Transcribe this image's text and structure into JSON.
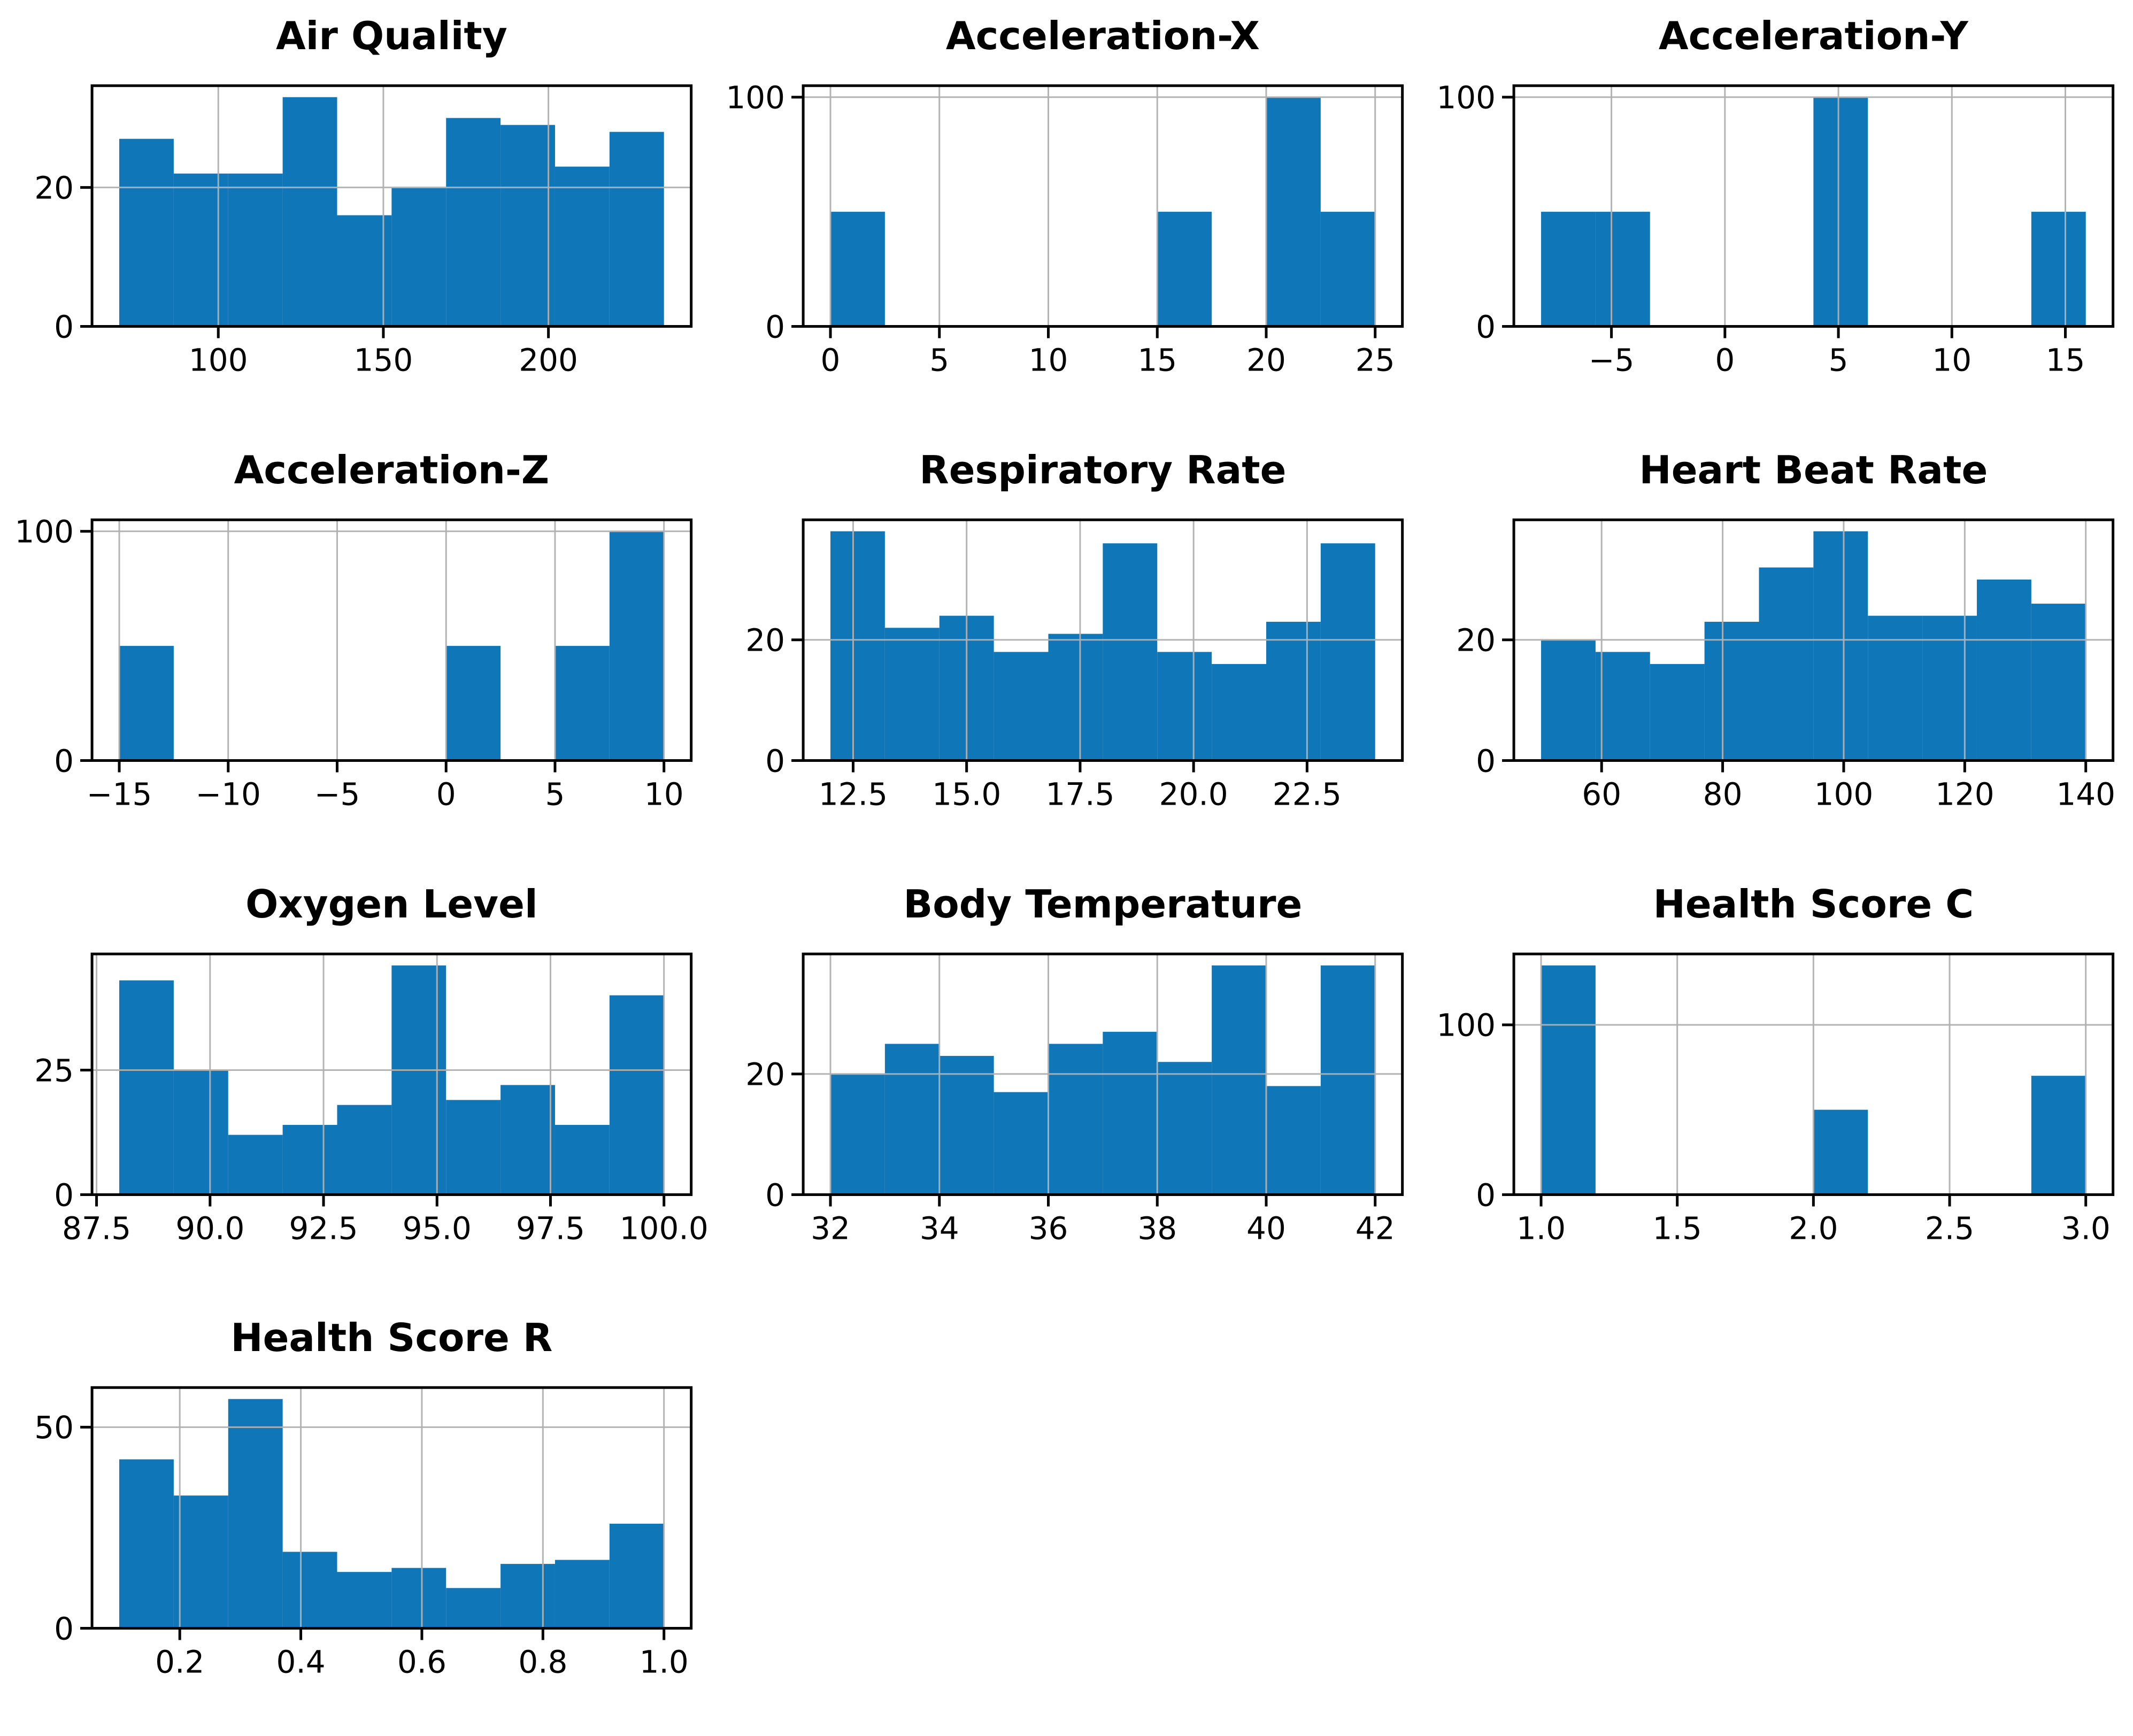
{
  "figure": {
    "background": "#ffffff",
    "grid_rows": 4,
    "grid_cols": 3,
    "empty_cells": 2
  },
  "colors": {
    "bar": "#0f76b8",
    "grid": "#b0b0b0",
    "spine": "#000000",
    "text": "#000000"
  },
  "chart_data": [
    {
      "type": "bar",
      "subtype": "histogram",
      "title": "Air Quality",
      "bin_start": 70,
      "bin_width": 16.5,
      "values": [
        27,
        22,
        22,
        33,
        16,
        20,
        30,
        29,
        23,
        28
      ],
      "xticks": [
        {
          "v": 100,
          "label": "100"
        },
        {
          "v": 150,
          "label": "150"
        },
        {
          "v": 200,
          "label": "200"
        }
      ],
      "yticks": [
        {
          "v": 0,
          "label": "0"
        },
        {
          "v": 20,
          "label": "20"
        }
      ],
      "xlim": [
        61.75,
        243.25
      ],
      "ylim": [
        0,
        34.65
      ],
      "grid": true
    },
    {
      "type": "bar",
      "subtype": "histogram",
      "title": "Acceleration-X",
      "bin_start": 0,
      "bin_width": 2.5,
      "values": [
        50,
        0,
        0,
        0,
        0,
        0,
        50,
        0,
        100,
        50
      ],
      "xticks": [
        {
          "v": 0,
          "label": "0"
        },
        {
          "v": 5,
          "label": "5"
        },
        {
          "v": 10,
          "label": "10"
        },
        {
          "v": 15,
          "label": "15"
        },
        {
          "v": 20,
          "label": "20"
        },
        {
          "v": 25,
          "label": "25"
        }
      ],
      "yticks": [
        {
          "v": 0,
          "label": "0"
        },
        {
          "v": 100,
          "label": "100"
        }
      ],
      "xlim": [
        -1.25,
        26.25
      ],
      "ylim": [
        0,
        105
      ],
      "grid": true
    },
    {
      "type": "bar",
      "subtype": "histogram",
      "title": "Acceleration-Y",
      "bin_start": -8.1,
      "bin_width": 2.4,
      "values": [
        50,
        50,
        0,
        0,
        0,
        100,
        0,
        0,
        0,
        50
      ],
      "xticks": [
        {
          "v": -5,
          "label": "−5"
        },
        {
          "v": 0,
          "label": "0"
        },
        {
          "v": 5,
          "label": "5"
        },
        {
          "v": 10,
          "label": "10"
        },
        {
          "v": 15,
          "label": "15"
        }
      ],
      "yticks": [
        {
          "v": 0,
          "label": "0"
        },
        {
          "v": 100,
          "label": "100"
        }
      ],
      "xlim": [
        -9.3,
        17.1
      ],
      "ylim": [
        0,
        105
      ],
      "grid": true
    },
    {
      "type": "bar",
      "subtype": "histogram",
      "title": "Acceleration-Z",
      "bin_start": -15,
      "bin_width": 2.5,
      "values": [
        50,
        0,
        0,
        0,
        0,
        0,
        50,
        0,
        50,
        100
      ],
      "xticks": [
        {
          "v": -15,
          "label": "−15"
        },
        {
          "v": -10,
          "label": "−10"
        },
        {
          "v": -5,
          "label": "−5"
        },
        {
          "v": 0,
          "label": "0"
        },
        {
          "v": 5,
          "label": "5"
        },
        {
          "v": 10,
          "label": "10"
        }
      ],
      "yticks": [
        {
          "v": 0,
          "label": "0"
        },
        {
          "v": 100,
          "label": "100"
        }
      ],
      "xlim": [
        -16.25,
        11.25
      ],
      "ylim": [
        0,
        105
      ],
      "grid": true
    },
    {
      "type": "bar",
      "subtype": "histogram",
      "title": "Respiratory Rate",
      "bin_start": 12,
      "bin_width": 1.2,
      "values": [
        38,
        22,
        24,
        18,
        21,
        36,
        18,
        16,
        23,
        36
      ],
      "xticks": [
        {
          "v": 12.5,
          "label": "12.5"
        },
        {
          "v": 15,
          "label": "15.0"
        },
        {
          "v": 17.5,
          "label": "17.5"
        },
        {
          "v": 20,
          "label": "20.0"
        },
        {
          "v": 22.5,
          "label": "22.5"
        }
      ],
      "yticks": [
        {
          "v": 0,
          "label": "0"
        },
        {
          "v": 20,
          "label": "20"
        }
      ],
      "xlim": [
        11.4,
        24.6
      ],
      "ylim": [
        0,
        39.9
      ],
      "grid": true
    },
    {
      "type": "bar",
      "subtype": "histogram",
      "title": "Heart Beat Rate",
      "bin_start": 50,
      "bin_width": 9,
      "values": [
        20,
        18,
        16,
        23,
        32,
        38,
        24,
        24,
        30,
        26
      ],
      "xticks": [
        {
          "v": 60,
          "label": "60"
        },
        {
          "v": 80,
          "label": "80"
        },
        {
          "v": 100,
          "label": "100"
        },
        {
          "v": 120,
          "label": "120"
        },
        {
          "v": 140,
          "label": "140"
        }
      ],
      "yticks": [
        {
          "v": 0,
          "label": "0"
        },
        {
          "v": 20,
          "label": "20"
        }
      ],
      "xlim": [
        45.5,
        144.5
      ],
      "ylim": [
        0,
        39.9
      ],
      "grid": true
    },
    {
      "type": "bar",
      "subtype": "histogram",
      "title": "Oxygen Level",
      "bin_start": 88,
      "bin_width": 1.2,
      "values": [
        43,
        25,
        12,
        14,
        18,
        46,
        19,
        22,
        14,
        40
      ],
      "xticks": [
        {
          "v": 87.5,
          "label": "87.5"
        },
        {
          "v": 90,
          "label": "90.0"
        },
        {
          "v": 92.5,
          "label": "92.5"
        },
        {
          "v": 95,
          "label": "95.0"
        },
        {
          "v": 97.5,
          "label": "97.5"
        },
        {
          "v": 100,
          "label": "100.0"
        }
      ],
      "yticks": [
        {
          "v": 0,
          "label": "0"
        },
        {
          "v": 25,
          "label": "25"
        }
      ],
      "xlim": [
        87.4,
        100.6
      ],
      "ylim": [
        0,
        48.3
      ],
      "grid": true
    },
    {
      "type": "bar",
      "subtype": "histogram",
      "title": "Body Temperature",
      "bin_start": 32,
      "bin_width": 1,
      "values": [
        20,
        25,
        23,
        17,
        25,
        27,
        22,
        38,
        18,
        38
      ],
      "xticks": [
        {
          "v": 32,
          "label": "32"
        },
        {
          "v": 34,
          "label": "34"
        },
        {
          "v": 36,
          "label": "36"
        },
        {
          "v": 38,
          "label": "38"
        },
        {
          "v": 40,
          "label": "40"
        },
        {
          "v": 42,
          "label": "42"
        }
      ],
      "yticks": [
        {
          "v": 0,
          "label": "0"
        },
        {
          "v": 20,
          "label": "20"
        }
      ],
      "xlim": [
        31.5,
        42.5
      ],
      "ylim": [
        0,
        39.9
      ],
      "grid": true
    },
    {
      "type": "bar",
      "subtype": "histogram",
      "title": "Health Score C",
      "bin_start": 1.0,
      "bin_width": 0.2,
      "values": [
        135,
        0,
        0,
        0,
        0,
        50,
        0,
        0,
        0,
        70
      ],
      "xticks": [
        {
          "v": 1.0,
          "label": "1.0"
        },
        {
          "v": 1.5,
          "label": "1.5"
        },
        {
          "v": 2.0,
          "label": "2.0"
        },
        {
          "v": 2.5,
          "label": "2.5"
        },
        {
          "v": 3.0,
          "label": "3.0"
        }
      ],
      "yticks": [
        {
          "v": 0,
          "label": "0"
        },
        {
          "v": 100,
          "label": "100"
        }
      ],
      "xlim": [
        0.9,
        3.1
      ],
      "ylim": [
        0,
        141.75
      ],
      "grid": true
    },
    {
      "type": "bar",
      "subtype": "histogram",
      "title": "Health Score R",
      "bin_start": 0.1,
      "bin_width": 0.09,
      "values": [
        42,
        33,
        57,
        19,
        14,
        15,
        10,
        16,
        17,
        26
      ],
      "xticks": [
        {
          "v": 0.2,
          "label": "0.2"
        },
        {
          "v": 0.4,
          "label": "0.4"
        },
        {
          "v": 0.6,
          "label": "0.6"
        },
        {
          "v": 0.8,
          "label": "0.8"
        },
        {
          "v": 1.0,
          "label": "1.0"
        }
      ],
      "yticks": [
        {
          "v": 0,
          "label": "0"
        },
        {
          "v": 50,
          "label": "50"
        }
      ],
      "xlim": [
        0.055,
        1.045
      ],
      "ylim": [
        0,
        59.85
      ],
      "grid": true
    }
  ]
}
